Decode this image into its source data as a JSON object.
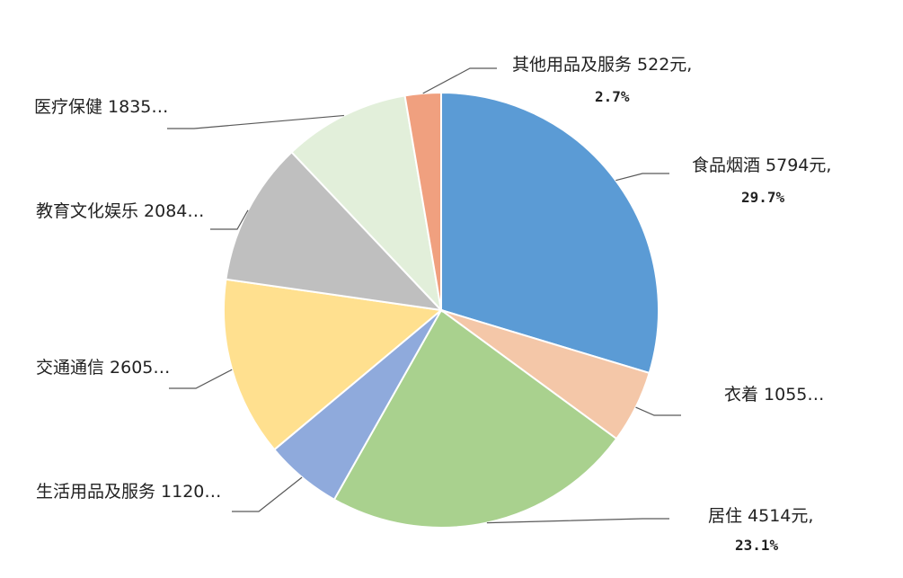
{
  "chart_data": {
    "type": "pie",
    "unit": "元",
    "slices": [
      {
        "name": "食品烟酒",
        "value": 5794,
        "percent": 29.7,
        "color": "#5b9bd5",
        "label_line1": "食品烟酒 5794元,",
        "label_line2": "29.7%"
      },
      {
        "name": "衣着",
        "value": 1055,
        "color": "#f4c7a8",
        "label_line1": "衣着 1055…"
      },
      {
        "name": "居住",
        "value": 4514,
        "percent": 23.1,
        "color": "#a9d18e",
        "label_line1": "居住 4514元,",
        "label_line2": "23.1%"
      },
      {
        "name": "生活用品及服务",
        "value": 1120,
        "color": "#8faadc",
        "label_line1": "生活用品及服务 1120…"
      },
      {
        "name": "交通通信",
        "value": 2605,
        "color": "#ffe08f",
        "label_line1": "交通通信 2605…"
      },
      {
        "name": "教育文化娱乐",
        "value": 2084,
        "color": "#bfbfbf",
        "label_line1": "教育文化娱乐 2084…"
      },
      {
        "name": "医疗保健",
        "value": 1835,
        "color": "#e2efda",
        "label_line1": "医疗保健 1835…"
      },
      {
        "name": "其他用品及服务",
        "value": 522,
        "percent": 2.7,
        "color": "#f0a07f",
        "label_line1": "其他用品及服务 522元,",
        "label_line2": "2.7%"
      }
    ],
    "start_angle": "12 o'clock",
    "direction": "clockwise",
    "labels": "outside with leader lines"
  }
}
